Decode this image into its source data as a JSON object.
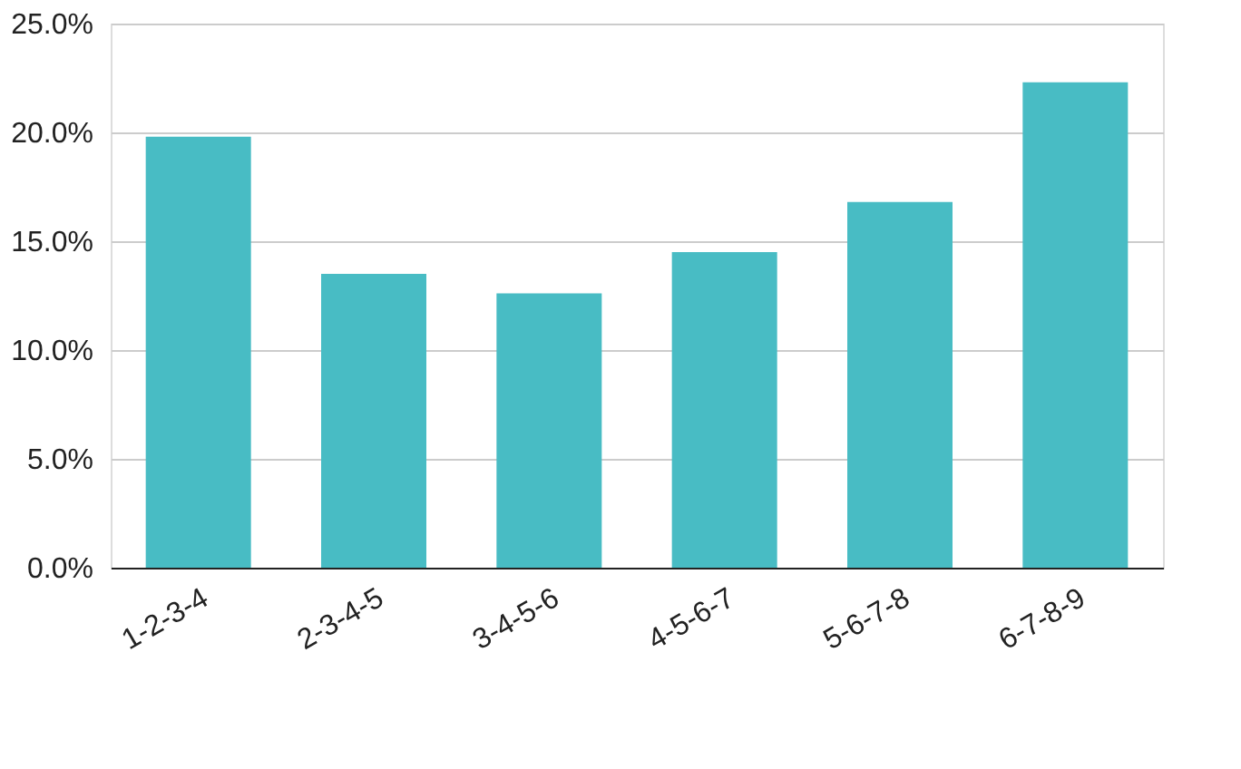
{
  "chart_data": {
    "type": "bar",
    "categories": [
      "1-2-3-4",
      "2-3-4-5",
      "3-4-5-6",
      "4-5-6-7",
      "5-6-7-8",
      "6-7-8-9"
    ],
    "values": [
      19.8,
      13.5,
      12.6,
      14.5,
      16.8,
      22.3
    ],
    "color": "#48bcc4",
    "ylim": [
      0,
      25
    ],
    "yticks": [
      {
        "value": 0,
        "label": "0.0%"
      },
      {
        "value": 5,
        "label": "5.0%"
      },
      {
        "value": 10,
        "label": "10.0%"
      },
      {
        "value": 15,
        "label": "15.0%"
      },
      {
        "value": 20,
        "label": "20.0%"
      },
      {
        "value": 25,
        "label": "25.0%"
      }
    ],
    "grid": "y"
  }
}
